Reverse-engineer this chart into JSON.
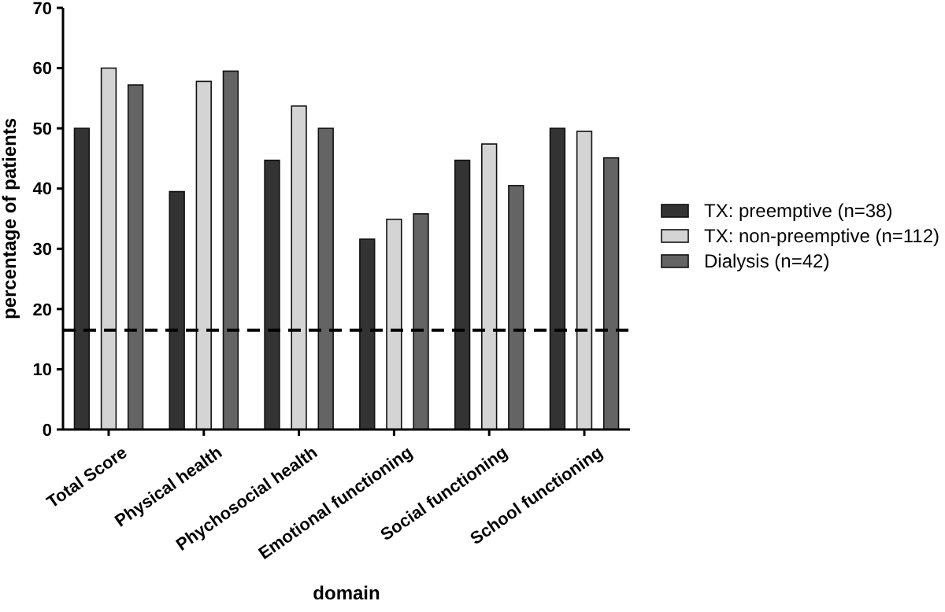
{
  "chart_data": {
    "type": "bar",
    "xlabel": "domain",
    "ylabel": "percentage of patients",
    "categories": [
      "Total Score",
      "Physical health",
      "Phychosocial health",
      "Emotional functioning",
      "Social functioning",
      "School functioning"
    ],
    "series": [
      {
        "name": "TX: preemptive (n=38)",
        "color": "#333333",
        "values": [
          50,
          39.5,
          44.7,
          31.6,
          44.7,
          50
        ]
      },
      {
        "name": "TX: non-preemptive (n=112)",
        "color": "#d4d4d4",
        "values": [
          60,
          57.8,
          53.7,
          34.9,
          47.4,
          49.5
        ]
      },
      {
        "name": "Dialysis (n=42)",
        "color": "#646464",
        "values": [
          57.2,
          59.5,
          50,
          35.8,
          40.5,
          45.1
        ]
      }
    ],
    "ylim": [
      0,
      70
    ],
    "yticks": [
      0,
      10,
      20,
      30,
      40,
      50,
      60,
      70
    ],
    "grid": false,
    "legend": "right",
    "ref_lines": [
      {
        "axis": "y",
        "value": 16.5,
        "line_style": "dashed",
        "color": "#000000"
      }
    ]
  }
}
